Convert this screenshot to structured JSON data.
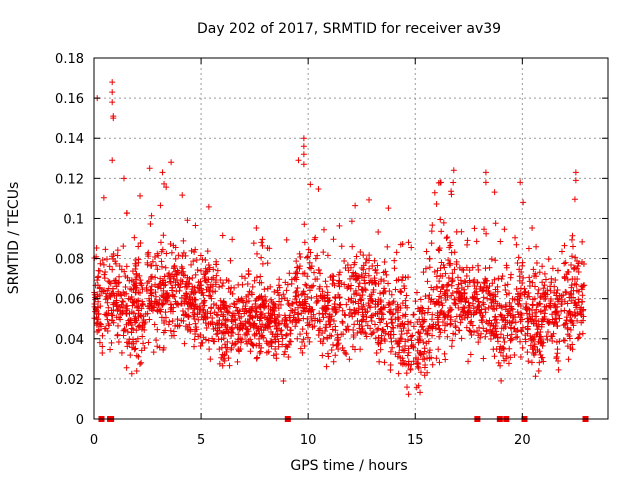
{
  "chart_data": {
    "type": "scatter",
    "title": "Day 202 of 2017, SRMTID for receiver av39",
    "xlabel": "GPS time / hours",
    "ylabel": "SRMTID / TECUs",
    "xlim": [
      0,
      24
    ],
    "ylim": [
      0,
      0.18
    ],
    "x_ticks": [
      "0",
      "5",
      "10",
      "15",
      "20"
    ],
    "x_tick_values": [
      0,
      5,
      10,
      15,
      20
    ],
    "y_ticks": [
      "0",
      "0.02",
      "0.04",
      "0.06",
      "0.08",
      "0.1",
      "0.12",
      "0.14",
      "0.16",
      "0.18"
    ],
    "y_tick_values": [
      0,
      0.02,
      0.04,
      0.06,
      0.08,
      0.1,
      0.12,
      0.14,
      0.16,
      0.18
    ],
    "grid": true,
    "series": [
      {
        "name": "SRMTID",
        "marker": "+",
        "color": "#ee0000",
        "profile_x": [
          0,
          0.5,
          1,
          1.5,
          2,
          2.5,
          3,
          3.5,
          4,
          4.5,
          5,
          5.5,
          6,
          6.5,
          7,
          7.5,
          8,
          8.5,
          9,
          9.5,
          10,
          10.5,
          11,
          11.5,
          12,
          12.5,
          13,
          13.5,
          14,
          14.5,
          15,
          15.5,
          16,
          16.5,
          17,
          17.5,
          18,
          18.5,
          19,
          19.5,
          20,
          20.5,
          21,
          21.5,
          22,
          22.5,
          22.9
        ],
        "profile_mean": [
          0.055,
          0.06,
          0.055,
          0.052,
          0.057,
          0.062,
          0.06,
          0.063,
          0.062,
          0.06,
          0.062,
          0.06,
          0.045,
          0.048,
          0.05,
          0.05,
          0.05,
          0.048,
          0.05,
          0.058,
          0.06,
          0.055,
          0.05,
          0.055,
          0.058,
          0.06,
          0.055,
          0.055,
          0.048,
          0.045,
          0.035,
          0.045,
          0.058,
          0.06,
          0.06,
          0.055,
          0.055,
          0.058,
          0.045,
          0.052,
          0.055,
          0.052,
          0.05,
          0.05,
          0.055,
          0.06,
          0.065
        ],
        "profile_spread": [
          0.015,
          0.025,
          0.02,
          0.02,
          0.025,
          0.02,
          0.02,
          0.022,
          0.02,
          0.02,
          0.02,
          0.02,
          0.02,
          0.016,
          0.015,
          0.015,
          0.015,
          0.016,
          0.018,
          0.02,
          0.022,
          0.02,
          0.02,
          0.02,
          0.02,
          0.02,
          0.02,
          0.02,
          0.02,
          0.02,
          0.02,
          0.022,
          0.025,
          0.022,
          0.02,
          0.02,
          0.02,
          0.02,
          0.02,
          0.02,
          0.02,
          0.02,
          0.02,
          0.02,
          0.022,
          0.022,
          0.02
        ],
        "peaks": [
          {
            "x": 0.15,
            "y": 0.16
          },
          {
            "x": 0.85,
            "y": 0.168
          },
          {
            "x": 0.85,
            "y": 0.163
          },
          {
            "x": 0.85,
            "y": 0.158
          },
          {
            "x": 0.9,
            "y": 0.151
          },
          {
            "x": 0.9,
            "y": 0.15
          },
          {
            "x": 0.85,
            "y": 0.129
          },
          {
            "x": 1.4,
            "y": 0.12
          },
          {
            "x": 2.6,
            "y": 0.125
          },
          {
            "x": 3.2,
            "y": 0.123
          },
          {
            "x": 3.6,
            "y": 0.128
          },
          {
            "x": 9.55,
            "y": 0.129
          },
          {
            "x": 9.8,
            "y": 0.14
          },
          {
            "x": 9.8,
            "y": 0.136
          },
          {
            "x": 9.8,
            "y": 0.132
          },
          {
            "x": 9.8,
            "y": 0.127
          },
          {
            "x": 10.1,
            "y": 0.117
          },
          {
            "x": 16.2,
            "y": 0.118
          },
          {
            "x": 16.8,
            "y": 0.124
          },
          {
            "x": 18.3,
            "y": 0.123
          },
          {
            "x": 18.3,
            "y": 0.118
          },
          {
            "x": 19.9,
            "y": 0.118
          },
          {
            "x": 22.5,
            "y": 0.123
          },
          {
            "x": 22.5,
            "y": 0.119
          }
        ],
        "zero_points_x": [
          0.35,
          0.75,
          0.8,
          9.05,
          17.9,
          18.95,
          19.25,
          20.1,
          22.95
        ]
      }
    ]
  }
}
